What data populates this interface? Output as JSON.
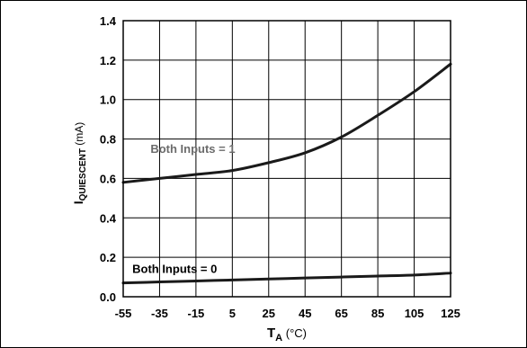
{
  "chart_data": {
    "type": "line",
    "title": "",
    "xlim": [
      -55,
      125
    ],
    "ylim": [
      0,
      1.4
    ],
    "x_ticks": [
      "-55",
      "-35",
      "-15",
      "5",
      "25",
      "45",
      "65",
      "85",
      "105",
      "125"
    ],
    "y_ticks": [
      "0.0",
      "0.2",
      "0.4",
      "0.6",
      "0.8",
      "1.0",
      "1.2",
      "1.4"
    ],
    "x_tick_values": [
      -55,
      -35,
      -15,
      5,
      25,
      45,
      65,
      85,
      105,
      125
    ],
    "y_tick_values": [
      0,
      0.2,
      0.4,
      0.6,
      0.8,
      1.0,
      1.2,
      1.4
    ],
    "xlabel": {
      "main": "T",
      "sub": "A",
      "unit": " (°C)"
    },
    "ylabel": {
      "main": "I",
      "sub": "QUIESCENT",
      "unit": " (mA)"
    },
    "grid": true,
    "series": [
      {
        "x": [
          -55,
          -35,
          -15,
          5,
          25,
          45,
          65,
          85,
          105,
          125
        ],
        "y": [
          0.58,
          0.6,
          0.62,
          0.64,
          0.68,
          0.73,
          0.81,
          0.92,
          1.04,
          1.18
        ],
        "color": "#1a1a1a"
      },
      {
        "x": [
          -55,
          -35,
          -15,
          5,
          25,
          45,
          65,
          85,
          105,
          125
        ],
        "y": [
          0.07,
          0.075,
          0.08,
          0.085,
          0.09,
          0.095,
          0.1,
          0.105,
          0.11,
          0.12
        ],
        "color": "#1a1a1a"
      }
    ],
    "annotations": [
      {
        "text": "Both Inputs = 1",
        "x": -40,
        "y": 0.73,
        "color": "#6b6b6b"
      },
      {
        "text": "Both Inputs = 0",
        "x": -50,
        "y": 0.12,
        "color": "#000000"
      }
    ]
  }
}
